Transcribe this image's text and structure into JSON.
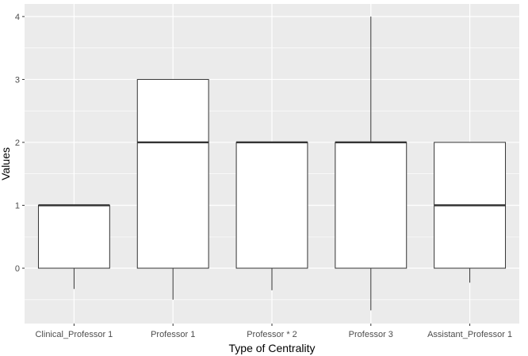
{
  "chart_data": {
    "type": "boxplot",
    "title": "",
    "xlabel": "Type of Centrality",
    "ylabel": "Values",
    "ylim": [
      -0.88,
      4.2
    ],
    "y_ticks": [
      0,
      1,
      2,
      3,
      4
    ],
    "grid": true,
    "background": "#ebebeb",
    "grid_color": "#ffffff",
    "box_fill": "#ffffff",
    "box_stroke": "#333333",
    "categories": [
      "Clinical_Professor 1",
      "Professor 1",
      "Professor * 2",
      "Professor 3",
      "Assistant_Professor 1"
    ],
    "boxes": [
      {
        "category": "Clinical_Professor 1",
        "whisker_low": -0.33,
        "q1": 0,
        "median": 1,
        "q3": 1,
        "whisker_high": 1
      },
      {
        "category": "Professor 1",
        "whisker_low": -0.5,
        "q1": 0,
        "median": 2,
        "q3": 3,
        "whisker_high": 3
      },
      {
        "category": "Professor * 2",
        "whisker_low": -0.35,
        "q1": 0,
        "median": 2,
        "q3": 2,
        "whisker_high": 2
      },
      {
        "category": "Professor 3",
        "whisker_low": -0.67,
        "q1": 0,
        "median": 2,
        "q3": 2,
        "whisker_high": 4
      },
      {
        "category": "Assistant_Professor 1",
        "whisker_low": -0.23,
        "q1": 0,
        "median": 1,
        "q3": 2,
        "whisker_high": 2
      }
    ]
  }
}
